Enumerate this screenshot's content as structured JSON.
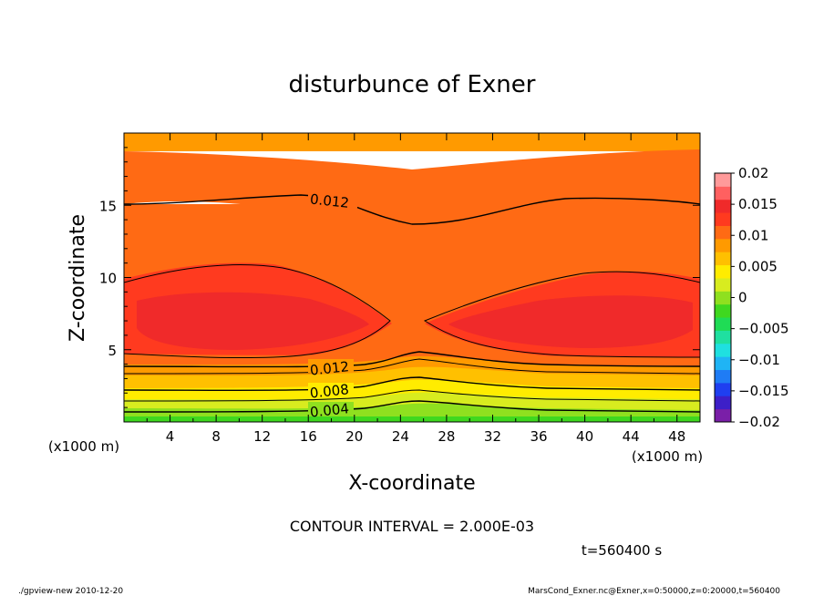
{
  "chart_data": {
    "type": "heatmap",
    "title": "disturbunce of Exner",
    "xlabel": "X-coordinate",
    "ylabel": "Z-coordinate",
    "x_unit_label": "(x1000 m)",
    "y_unit_label": "(x1000 m)",
    "xlim": [
      0,
      50
    ],
    "ylim": [
      0,
      20
    ],
    "x_ticks": [
      4,
      8,
      12,
      16,
      20,
      24,
      28,
      32,
      36,
      40,
      44,
      48
    ],
    "y_ticks": [
      5,
      10,
      15
    ],
    "contour_interval_text": "CONTOUR INTERVAL = 2.000E-03",
    "time_text": "t=560400 s",
    "colorbar": {
      "range": [
        -0.02,
        0.02
      ],
      "tick_labels": [
        "0.02",
        "0.015",
        "0.01",
        "0.005",
        "0",
        "−0.005",
        "−0.01",
        "−0.015",
        "−0.02"
      ],
      "colors": [
        "#7a1fa8",
        "#3d1fc8",
        "#1f3ff0",
        "#1f7cf5",
        "#1fb4f5",
        "#1fe0e0",
        "#1fe0a0",
        "#1fdc55",
        "#3fd81f",
        "#8fe01f",
        "#d8ec1f",
        "#ffec00",
        "#ffc000",
        "#ff9a00",
        "#ff6a14",
        "#ff3a1f",
        "#f02a2a",
        "#ff6060",
        "#ff9a9a"
      ]
    },
    "contours": [
      {
        "level": 0.012,
        "label": "0.012",
        "z": [
          15.0,
          15.1,
          15.3,
          15.5,
          15.6,
          15.4,
          14.3,
          13.7,
          13.8,
          14.4,
          15.0,
          15.3,
          15.2
        ]
      },
      {
        "level": 0.012,
        "label": "0.012",
        "z": [
          3.9,
          3.9,
          3.9,
          3.9,
          3.9,
          4.0,
          4.5,
          4.7,
          4.3,
          4.0,
          3.9,
          3.9,
          3.9
        ]
      },
      {
        "level": 0.01,
        "label": "",
        "z": [
          3.4,
          3.4,
          3.4,
          3.4,
          3.4,
          3.6,
          4.0,
          4.1,
          3.8,
          3.5,
          3.4,
          3.4,
          3.4
        ]
      },
      {
        "level": 0.008,
        "label": "0.008",
        "z": [
          2.4,
          2.4,
          2.4,
          2.4,
          2.4,
          2.6,
          3.0,
          3.1,
          2.8,
          2.5,
          2.4,
          2.4,
          2.4
        ]
      },
      {
        "level": 0.006,
        "label": "",
        "z": [
          1.7,
          1.7,
          1.7,
          1.7,
          1.7,
          1.9,
          2.2,
          2.3,
          2.1,
          1.8,
          1.7,
          1.7,
          1.7
        ]
      },
      {
        "level": 0.004,
        "label": "0.004",
        "z": [
          0.9,
          0.9,
          0.9,
          0.9,
          0.9,
          1.1,
          1.4,
          1.5,
          1.3,
          1.0,
          0.9,
          0.9,
          0.9
        ]
      }
    ],
    "maxima": [
      {
        "x": 12,
        "z": 7.0,
        "value": 0.015
      },
      {
        "x": 44,
        "z": 7.0,
        "value": 0.015
      }
    ]
  },
  "footer": {
    "left": "./gpview-new  2010-12-20",
    "right": "MarsCond_Exner.nc@Exner,x=0:50000,z=0:20000,t=560400"
  }
}
